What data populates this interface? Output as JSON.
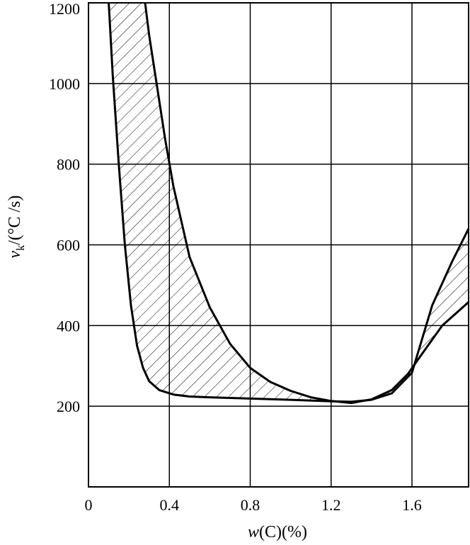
{
  "chart_data": {
    "type": "area",
    "xlabel_var": "w",
    "xlabel_rest": "(C)(%)",
    "ylabel_var": "v",
    "ylabel_sub": "k",
    "ylabel_rest": "/(°C /s)",
    "xlim": [
      0,
      1.88
    ],
    "ylim": [
      0,
      1200
    ],
    "x_ticks": [
      0,
      0.4,
      0.8,
      1.2,
      1.6
    ],
    "x_tick_labels": [
      "0",
      "0.4",
      "0.8",
      "1.2",
      "1.6"
    ],
    "y_ticks": [
      200,
      400,
      600,
      800,
      1000,
      1200
    ],
    "y_tick_labels": [
      "200",
      "400",
      "600",
      "800",
      "1000",
      "1200"
    ],
    "x_grid": [
      0.4,
      0.8,
      1.2,
      1.6
    ],
    "y_grid": [
      200,
      400,
      600,
      800,
      1000
    ],
    "grid": true,
    "band": {
      "upper_boundary": {
        "x": [
          0.28,
          0.3,
          0.34,
          0.38,
          0.42,
          0.5,
          0.6,
          0.7,
          0.8,
          0.9,
          1.0,
          1.1,
          1.2,
          1.3,
          1.4,
          1.5,
          1.58,
          1.65,
          1.75,
          1.88
        ],
        "y": [
          1200,
          1120,
          990,
          860,
          745,
          570,
          445,
          355,
          295,
          260,
          238,
          222,
          213,
          208,
          217,
          240,
          280,
          330,
          400,
          458
        ]
      },
      "lower_boundary": {
        "x": [
          0.1,
          0.12,
          0.15,
          0.18,
          0.21,
          0.24,
          0.27,
          0.3,
          0.35,
          0.42,
          0.5,
          0.6,
          0.8,
          1.0,
          1.2,
          1.3,
          1.4,
          1.5,
          1.6,
          1.7,
          1.8,
          1.88
        ],
        "y": [
          1200,
          1020,
          800,
          600,
          450,
          350,
          295,
          262,
          240,
          229,
          224,
          222,
          219,
          216,
          212,
          211,
          216,
          232,
          283,
          450,
          560,
          640
        ]
      }
    }
  }
}
